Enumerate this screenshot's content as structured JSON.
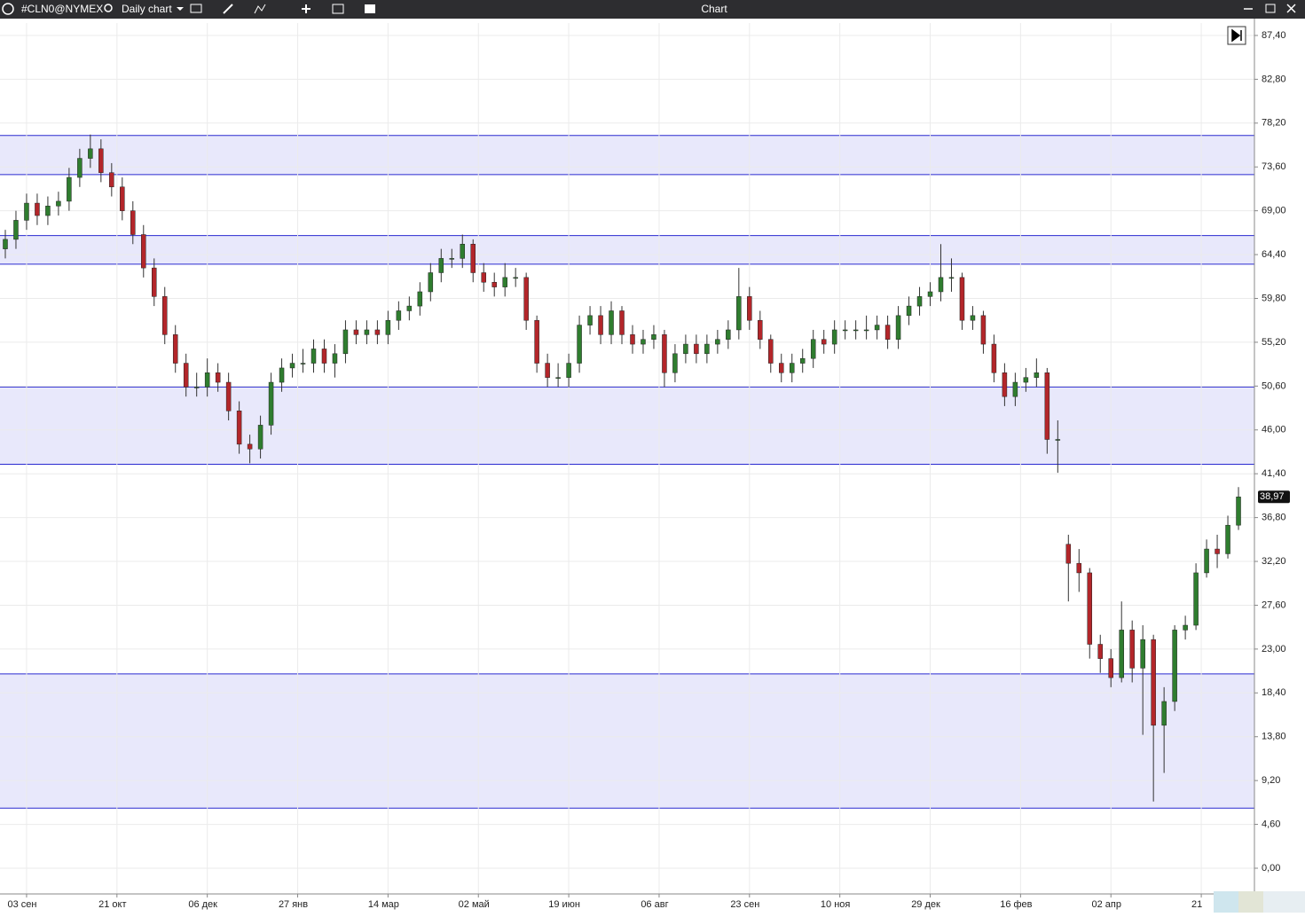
{
  "toolbar": {
    "symbol": "#CLN0@NYMEX",
    "timeframe": "Daily chart",
    "window_title": "Chart"
  },
  "chart_data": {
    "type": "candlestick",
    "xlim": [
      0,
      118
    ],
    "xticks": [
      {
        "value": 2.5,
        "label": "03 сен"
      },
      {
        "value": 11,
        "label": "21 окт"
      },
      {
        "value": 19.5,
        "label": "06 дек"
      },
      {
        "value": 28,
        "label": "27 янв"
      },
      {
        "value": 36.5,
        "label": "14 мар"
      },
      {
        "value": 45,
        "label": "02 май"
      },
      {
        "value": 53.5,
        "label": "19 июн"
      },
      {
        "value": 62,
        "label": "06 авг"
      },
      {
        "value": 70.5,
        "label": "23 сен"
      },
      {
        "value": 79,
        "label": "10 ноя"
      },
      {
        "value": 87.5,
        "label": "29 дек"
      },
      {
        "value": 96,
        "label": "16 фев"
      },
      {
        "value": 104.5,
        "label": "02 апр"
      },
      {
        "value": 113,
        "label": "21"
      }
    ],
    "ylim": [
      -2.7,
      88.7
    ],
    "yticks": [
      {
        "value": 0,
        "label": "0,00"
      },
      {
        "value": 4.6,
        "label": "4,60"
      },
      {
        "value": 9.2,
        "label": "9,20"
      },
      {
        "value": 13.8,
        "label": "13,80"
      },
      {
        "value": 18.4,
        "label": "18,40"
      },
      {
        "value": 23,
        "label": "23,00"
      },
      {
        "value": 27.6,
        "label": "27,60"
      },
      {
        "value": 32.2,
        "label": "32,20"
      },
      {
        "value": 36.8,
        "label": "36,80"
      },
      {
        "value": 41.4,
        "label": "41,40"
      },
      {
        "value": 46,
        "label": "46,00"
      },
      {
        "value": 50.6,
        "label": "50,60"
      },
      {
        "value": 55.2,
        "label": "55,20"
      },
      {
        "value": 59.8,
        "label": "59,80"
      },
      {
        "value": 64.4,
        "label": "64,40"
      },
      {
        "value": 69,
        "label": "69,00"
      },
      {
        "value": 73.6,
        "label": "73,60"
      },
      {
        "value": 78.2,
        "label": "78,20"
      },
      {
        "value": 82.8,
        "label": "82,80"
      },
      {
        "value": 87.4,
        "label": "87,40"
      }
    ],
    "grid": true,
    "up_color": "#2f7d2f",
    "down_color": "#b3262a",
    "zone_color": "#e8e8fb",
    "zone_border": "#2a2ad0",
    "zones": [
      {
        "low": 72.8,
        "high": 76.9
      },
      {
        "low": 63.4,
        "high": 66.4
      },
      {
        "low": 42.4,
        "high": 50.5
      },
      {
        "low": 6.3,
        "high": 20.4
      }
    ],
    "open": [
      65,
      66,
      68,
      69.8,
      68.5,
      69.5,
      70,
      72.5,
      74.5,
      75.5,
      73,
      71.5,
      69,
      66.5,
      63,
      60,
      56,
      53,
      50.5,
      50.5,
      52,
      51,
      48,
      44.5,
      44,
      46.5,
      51,
      52.5,
      53,
      53,
      54.5,
      53,
      54,
      56.5,
      56,
      56.5,
      56,
      57.5,
      58.5,
      59,
      60.5,
      62.5,
      64,
      64,
      65.5,
      62.5,
      61.5,
      61,
      62,
      62,
      57.5,
      53,
      51.5,
      51.5,
      53,
      57,
      58,
      56,
      58.5,
      56,
      55,
      55.5,
      56,
      52,
      54,
      55,
      54,
      55,
      55.5,
      56.5,
      60,
      57.5,
      55.5,
      53,
      52,
      53,
      53.5,
      55.5,
      55,
      56.5,
      56.5,
      56.5,
      56.5,
      57,
      55.5,
      58,
      59,
      60,
      60.5,
      62,
      62,
      57.5,
      58,
      55,
      52,
      49.5,
      51,
      51.5,
      52,
      45,
      34,
      32,
      31,
      23.5,
      22,
      20,
      25,
      21,
      24,
      15,
      17.5,
      25,
      25.5,
      31,
      33.5,
      33,
      36
    ],
    "high": [
      67,
      69,
      70.8,
      70.8,
      70.5,
      71,
      73.5,
      75.5,
      77,
      76.5,
      74,
      72.5,
      70,
      67.5,
      64,
      61,
      57,
      54,
      52,
      53.5,
      53,
      52,
      49,
      45.5,
      47.5,
      52,
      53.5,
      54,
      54.5,
      55.5,
      55.5,
      55,
      57.5,
      57.5,
      57.5,
      57.5,
      58.5,
      59.5,
      60,
      61.5,
      63.5,
      65,
      65,
      66.5,
      66,
      63.5,
      62.5,
      63.5,
      63,
      62.5,
      58,
      54,
      53,
      54,
      58,
      59,
      59,
      59.5,
      59,
      57,
      56.5,
      57,
      56.5,
      55,
      56,
      56,
      56,
      56.5,
      57.5,
      63,
      61,
      58.5,
      56,
      54,
      54,
      54.5,
      56.5,
      56.5,
      57.5,
      57.5,
      57.5,
      58,
      58,
      58,
      59,
      60,
      61,
      61.5,
      65.5,
      64,
      62.5,
      59,
      58.5,
      56,
      53,
      52,
      52.5,
      53.5,
      52.5,
      47,
      35,
      33.5,
      31.5,
      24.5,
      23,
      28,
      26,
      25.5,
      24.5,
      19,
      25.5,
      26.5,
      32,
      34.5,
      35,
      37,
      40
    ],
    "low": [
      64,
      65,
      67,
      67.5,
      67.5,
      68.5,
      69,
      71.5,
      73.5,
      72,
      70.5,
      68,
      65.5,
      62,
      59,
      55,
      52,
      49.5,
      49.5,
      49.5,
      50,
      47,
      43.5,
      42.5,
      43,
      45.5,
      50,
      51.5,
      52,
      52,
      52,
      51.5,
      53,
      55,
      55,
      55,
      55,
      56.5,
      57.5,
      58,
      59.5,
      61.5,
      63,
      63,
      61.5,
      60.5,
      60,
      60,
      61,
      56.5,
      52,
      50.5,
      50.5,
      50.5,
      52,
      56,
      55,
      55,
      55,
      54,
      54,
      54.5,
      50.5,
      51,
      53,
      53,
      53,
      54,
      54.5,
      55.5,
      56.5,
      54.5,
      52,
      51,
      51,
      52,
      52.5,
      54,
      54,
      55.5,
      55.5,
      55.5,
      55.5,
      54.5,
      54.5,
      57,
      58,
      59,
      59.5,
      60.5,
      56.5,
      56.5,
      54,
      51,
      48.5,
      48.5,
      50,
      50.5,
      43.5,
      41.5,
      28,
      29,
      22,
      20.5,
      19,
      19.5,
      19.5,
      14,
      7,
      10,
      16.5,
      24,
      25,
      30.5,
      31.5,
      32.5,
      35.5
    ],
    "close": [
      66,
      68,
      69.8,
      68.5,
      69.5,
      70,
      72.5,
      74.5,
      75.5,
      73,
      71.5,
      69,
      66.5,
      63,
      60,
      56,
      53,
      50.5,
      50.5,
      52,
      51,
      48,
      44.5,
      44,
      46.5,
      51,
      52.5,
      53,
      53,
      54.5,
      53,
      54,
      56.5,
      56,
      56.5,
      56,
      57.5,
      58.5,
      59,
      60.5,
      62.5,
      64,
      64,
      65.5,
      62.5,
      61.5,
      61,
      62,
      62,
      57.5,
      53,
      51.5,
      51.5,
      53,
      57,
      58,
      56,
      58.5,
      56,
      55,
      55.5,
      56,
      52,
      54,
      55,
      54,
      55,
      55.5,
      56.5,
      60,
      57.5,
      55.5,
      53,
      52,
      53,
      53.5,
      55.5,
      55,
      56.5,
      56.5,
      56.5,
      56.5,
      57,
      55.5,
      58,
      59,
      60,
      60.5,
      62,
      62,
      57.5,
      58,
      55,
      52,
      49.5,
      51,
      51.5,
      52,
      45,
      45,
      32,
      31,
      23.5,
      22,
      20,
      25,
      21,
      24,
      15,
      17.5,
      25,
      25.5,
      31,
      33.5,
      33,
      36,
      38.97
    ],
    "last_value_label": "38,97"
  }
}
